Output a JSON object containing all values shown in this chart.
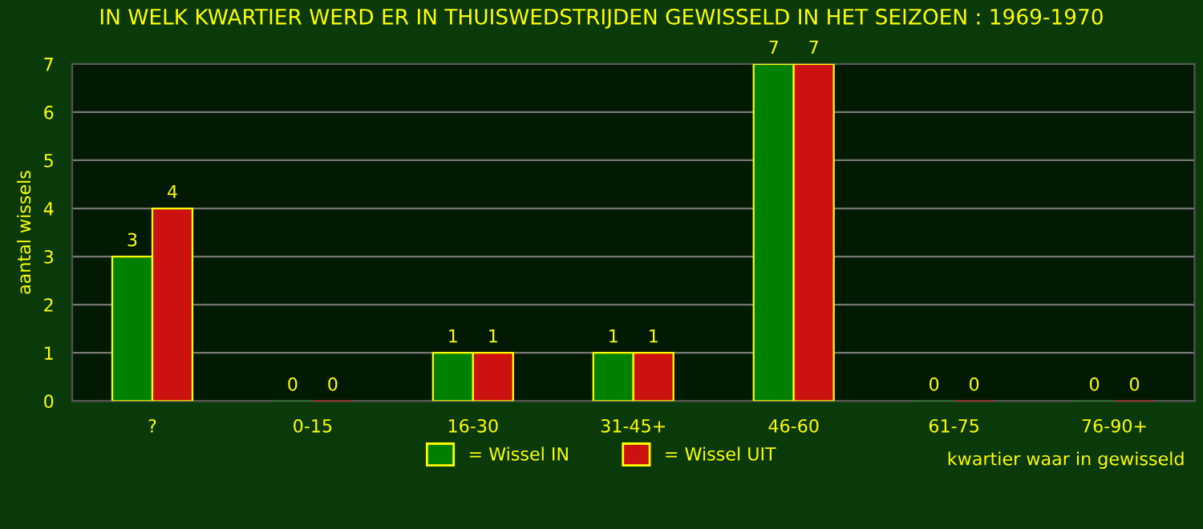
{
  "chart_data": {
    "type": "bar",
    "title": "IN WELK KWARTIER WERD ER IN THUISWEDSTRIJDEN GEWISSELD IN HET SEIZOEN : 1969-1970",
    "xlabel": "kwartier waar in gewisseld",
    "ylabel": "aantal wissels",
    "categories": [
      "?",
      "0-15",
      "16-30",
      "31-45+",
      "46-60",
      "61-75",
      "76-90+"
    ],
    "series": [
      {
        "name": "= Wissel IN",
        "color": "#008000",
        "values": [
          3,
          0,
          1,
          1,
          7,
          0,
          0
        ]
      },
      {
        "name": "= Wissel UIT",
        "color": "#cc1111",
        "values": [
          4,
          0,
          1,
          1,
          7,
          0,
          0
        ]
      }
    ],
    "ylim": [
      0,
      7
    ],
    "yticks": [
      0,
      1,
      2,
      3,
      4,
      5,
      6,
      7
    ],
    "grid": "y",
    "legend": "bottom",
    "data_labels": true
  }
}
